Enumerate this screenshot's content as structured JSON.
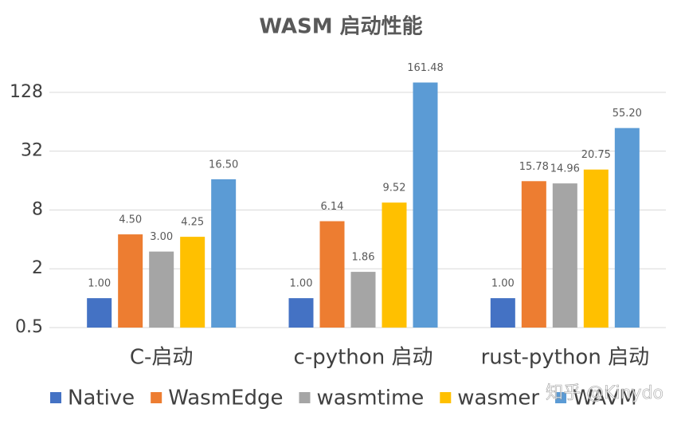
{
  "chart_data": {
    "type": "bar",
    "title": "WASM 启动性能",
    "categories": [
      "C-启动",
      "c-python 启动",
      "rust-python 启动"
    ],
    "series": [
      {
        "name": "Native",
        "color": "#4472c4",
        "values": [
          1,
          1,
          1
        ],
        "value_labels": [
          "1.00",
          "1.00",
          "1.00"
        ]
      },
      {
        "name": "WasmEdge",
        "color": "#ed7d31",
        "values": [
          4.5,
          6.14,
          15.78
        ],
        "value_labels": [
          "4.50",
          "6.14",
          "15.78"
        ]
      },
      {
        "name": "wasmtime",
        "color": "#a5a5a5",
        "values": [
          3,
          1.86,
          14.96
        ],
        "value_labels": [
          "3.00",
          "1.86",
          "14.96"
        ]
      },
      {
        "name": "wasmer",
        "color": "#ffc000",
        "values": [
          4.25,
          9.52,
          20.75
        ],
        "value_labels": [
          "4.25",
          "9.52",
          "20.75"
        ]
      },
      {
        "name": "WAVM",
        "color": "#5b9bd5",
        "values": [
          16.5,
          161.48,
          55.2
        ],
        "value_labels": [
          "16.50",
          "161.48",
          "55.20"
        ]
      }
    ],
    "ylim": [
      0.5,
      256
    ],
    "yticks": [
      0.5,
      2,
      8,
      32,
      128
    ],
    "log_scale": true,
    "log_base": 2,
    "grid": true,
    "legend": "bottom",
    "watermark": "知乎 @Kinydo"
  }
}
